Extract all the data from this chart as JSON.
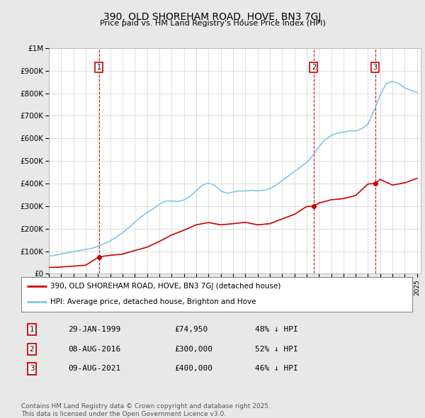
{
  "title": "390, OLD SHOREHAM ROAD, HOVE, BN3 7GJ",
  "subtitle": "Price paid vs. HM Land Registry's House Price Index (HPI)",
  "background_color": "#e8e8e8",
  "plot_bg_color": "#ffffff",
  "ylim": [
    0,
    1000000
  ],
  "yticks": [
    0,
    100000,
    200000,
    300000,
    400000,
    500000,
    600000,
    700000,
    800000,
    900000,
    1000000
  ],
  "ytick_labels": [
    "£0",
    "£100K",
    "£200K",
    "£300K",
    "£400K",
    "£500K",
    "£600K",
    "£700K",
    "£800K",
    "£900K",
    "£1M"
  ],
  "hpi_color": "#7ec8e3",
  "price_color": "#cc0000",
  "vline_color": "#cc0000",
  "sale_year_nums": [
    1999.08,
    2016.58,
    2021.58
  ],
  "sale_prices": [
    74950,
    300000,
    400000
  ],
  "sale_labels": [
    "1",
    "2",
    "3"
  ],
  "sale_date_strs": [
    "29-JAN-1999",
    "08-AUG-2016",
    "09-AUG-2021"
  ],
  "sale_pct_strs": [
    "48% ↓ HPI",
    "52% ↓ HPI",
    "46% ↓ HPI"
  ],
  "sale_price_strs": [
    "£74,950",
    "£300,000",
    "£400,000"
  ],
  "legend_label_red": "390, OLD SHOREHAM ROAD, HOVE, BN3 7GJ (detached house)",
  "legend_label_blue": "HPI: Average price, detached house, Brighton and Hove",
  "footnote": "Contains HM Land Registry data © Crown copyright and database right 2025.\nThis data is licensed under the Open Government Licence v3.0.",
  "hpi_years": [
    1995,
    1995.5,
    1996,
    1996.5,
    1997,
    1997.5,
    1998,
    1998.5,
    1999,
    1999.5,
    2000,
    2000.5,
    2001,
    2001.5,
    2002,
    2002.5,
    2003,
    2003.5,
    2004,
    2004.5,
    2005,
    2005.5,
    2006,
    2006.5,
    2007,
    2007.5,
    2008,
    2008.5,
    2009,
    2009.5,
    2010,
    2010.5,
    2011,
    2011.5,
    2012,
    2012.5,
    2013,
    2013.5,
    2014,
    2014.5,
    2015,
    2015.5,
    2016,
    2016.5,
    2017,
    2017.5,
    2018,
    2018.5,
    2019,
    2019.5,
    2020,
    2020.5,
    2021,
    2021.5,
    2022,
    2022.5,
    2023,
    2023.5,
    2024,
    2024.5,
    2025
  ],
  "hpi_values": [
    78000,
    82000,
    88000,
    93000,
    98000,
    103000,
    108000,
    113000,
    122000,
    133000,
    145000,
    163000,
    182000,
    204000,
    228000,
    252000,
    272000,
    288000,
    308000,
    322000,
    323000,
    320000,
    327000,
    343000,
    368000,
    392000,
    402000,
    392000,
    367000,
    357000,
    362000,
    367000,
    367000,
    370000,
    367000,
    370000,
    377000,
    392000,
    413000,
    433000,
    453000,
    473000,
    493000,
    523000,
    563000,
    593000,
    613000,
    623000,
    628000,
    633000,
    633000,
    643000,
    663000,
    723000,
    793000,
    843000,
    853000,
    843000,
    823000,
    813000,
    803000
  ],
  "price_years": [
    1995,
    1996,
    1997,
    1998,
    1999.08,
    2000,
    2001,
    2002,
    2003,
    2004,
    2005,
    2006,
    2007,
    2008,
    2009,
    2010,
    2011,
    2012,
    2013,
    2014,
    2015,
    2016,
    2016.58,
    2017,
    2018,
    2019,
    2020,
    2021,
    2021.58,
    2022,
    2023,
    2024,
    2025
  ],
  "price_values": [
    28000,
    30000,
    34000,
    38000,
    74950,
    82000,
    87000,
    103000,
    118000,
    143000,
    172000,
    193000,
    217000,
    227000,
    217000,
    222000,
    228000,
    217000,
    222000,
    243000,
    263000,
    298000,
    300000,
    313000,
    328000,
    333000,
    347000,
    398000,
    400000,
    418000,
    393000,
    403000,
    423000
  ]
}
